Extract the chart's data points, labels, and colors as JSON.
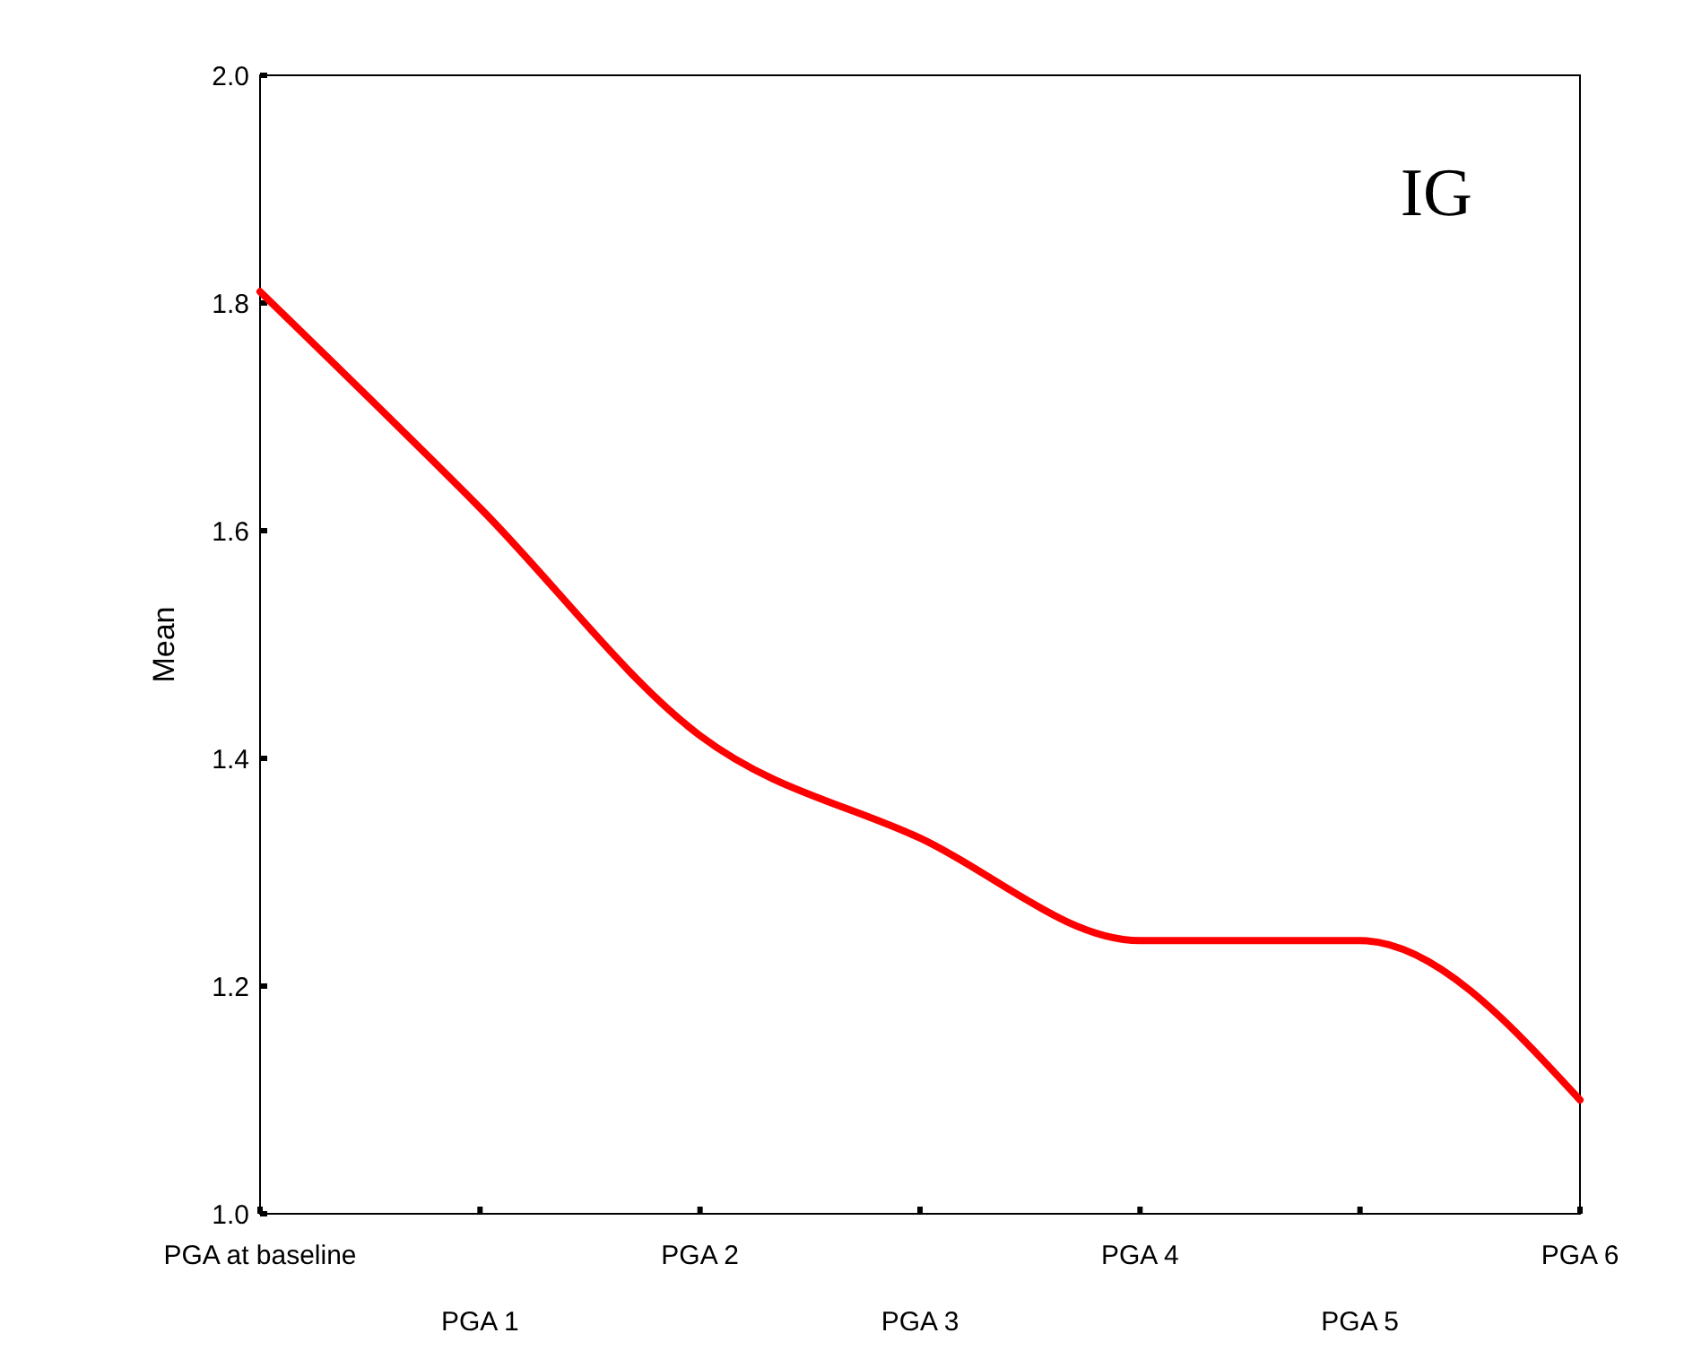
{
  "chart_data": {
    "type": "line",
    "ylabel": "Mean",
    "annotations": [
      "IG"
    ],
    "categories": [
      "PGA at baseline",
      "PGA 1",
      "PGA 2",
      "PGA 3",
      "PGA 4",
      "PGA 5",
      "PGA 6"
    ],
    "series": [
      {
        "color": "#ff0000",
        "values": [
          1.81,
          1.62,
          1.42,
          1.33,
          1.24,
          1.24,
          1.1
        ]
      }
    ],
    "ylim": [
      1.0,
      2.0
    ],
    "yticks": [
      {
        "value": 1.0,
        "label": "1.0"
      },
      {
        "value": 1.2,
        "label": "1.2"
      },
      {
        "value": 1.4,
        "label": "1.4"
      },
      {
        "value": 1.6,
        "label": "1.6"
      },
      {
        "value": 1.8,
        "label": "1.8"
      },
      {
        "value": 2.0,
        "label": "2.0"
      }
    ],
    "grid": false,
    "marker": "none",
    "line_style": "solid"
  }
}
